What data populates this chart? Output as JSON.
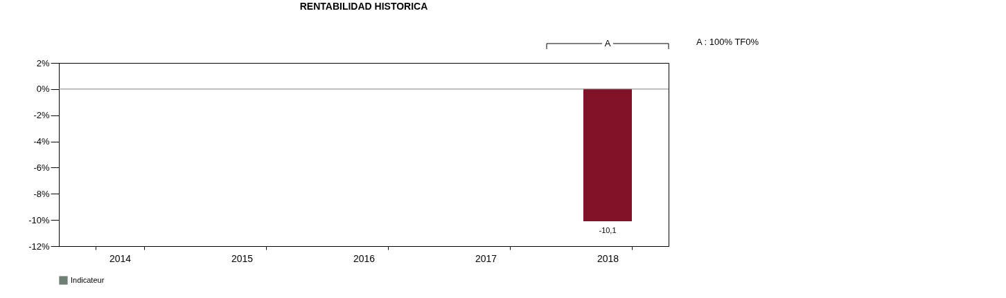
{
  "chart_data": {
    "type": "bar",
    "title": "RENTABILIDAD HISTORICA",
    "categories": [
      "2014",
      "2015",
      "2016",
      "2017",
      "2018"
    ],
    "series": [
      {
        "color": "#801327",
        "values": [
          null,
          null,
          null,
          null,
          -10.1
        ],
        "value_labels": [
          null,
          null,
          null,
          null,
          "-10,1"
        ]
      },
      {
        "name": "Indicateur",
        "color": "#6e7f74",
        "values": [
          null,
          null,
          null,
          null,
          null
        ]
      }
    ],
    "ylim": [
      -12,
      2
    ],
    "yticks": [
      {
        "value": -12,
        "label": "-12%"
      },
      {
        "value": -10,
        "label": "-10%"
      },
      {
        "value": -8,
        "label": "-8%"
      },
      {
        "value": -6,
        "label": "-6%"
      },
      {
        "value": -4,
        "label": "-4%"
      },
      {
        "value": -2,
        "label": "-2%"
      },
      {
        "value": 0,
        "label": "0%"
      },
      {
        "value": 2,
        "label": "2%"
      }
    ],
    "ref_lines": [
      {
        "axis": "y",
        "value": 0,
        "color": "#808080"
      }
    ],
    "annotations": [
      "A",
      "A : 100% TF0%"
    ],
    "grid": false,
    "legend": "bottom"
  }
}
